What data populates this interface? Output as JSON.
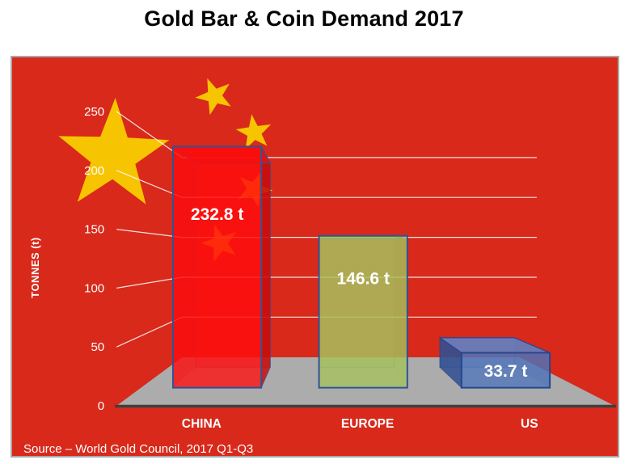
{
  "page": {
    "title": "Gold Bar & Coin Demand 2017"
  },
  "chart_data": {
    "type": "bar",
    "projection": "3d-perspective",
    "title": "Gold Bar & Coin Demand 2017",
    "categories": [
      "CHINA",
      "EUROPE",
      "US"
    ],
    "values": [
      232.8,
      146.6,
      33.7
    ],
    "data_labels": [
      "232.8 t",
      "146.6 t",
      "33.7 t"
    ],
    "ylabel": "TONNES (t)",
    "yticks": [
      0,
      50,
      100,
      150,
      200,
      250
    ],
    "ylim": [
      0,
      250
    ],
    "grid": true,
    "legend": "none",
    "source": "Source – World Gold Council, 2017 Q1-Q3",
    "background_theme": "china-flag",
    "colors": {
      "background": "#d8291b",
      "star": "#f6c400",
      "floor": "#acacac",
      "floor_edge": "#3f3f3f",
      "gridline": "rgba(255,255,255,0.85)",
      "text": "#ffffff",
      "title": "#050505",
      "bars": [
        {
          "main": "#ff0d0d",
          "top": "#e61111",
          "side": "#c40d0d",
          "outline": "#2f5496"
        },
        {
          "main": "#a6c25c",
          "top": "#90ae4a",
          "side": "#8cab46",
          "outline": "#2f5496"
        },
        {
          "main": "#4f74bb",
          "top": "#5f84c9",
          "side": "#2f4d90",
          "outline": "#24478f"
        }
      ]
    }
  }
}
